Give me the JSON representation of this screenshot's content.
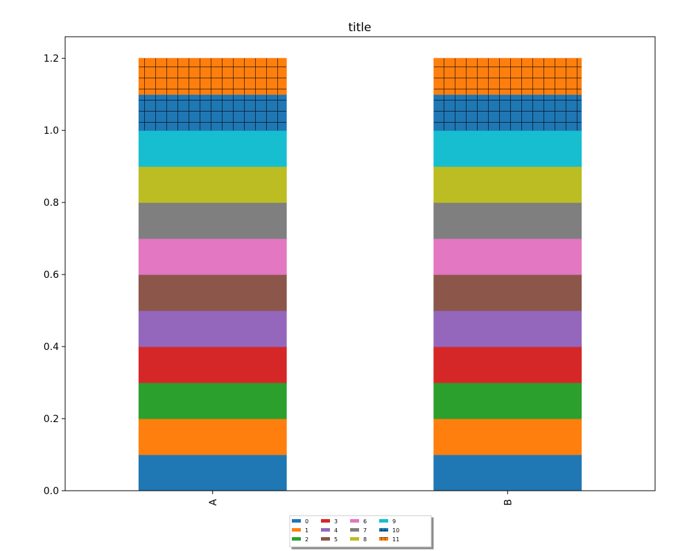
{
  "chart_data": {
    "type": "bar",
    "stacked": true,
    "title": "title",
    "xlabel": "",
    "ylabel": "",
    "categories": [
      "A",
      "B"
    ],
    "ylim": [
      0,
      1.26
    ],
    "yticks": [
      "0.0",
      "0.2",
      "0.4",
      "0.6",
      "0.8",
      "1.0",
      "1.2"
    ],
    "grid": false,
    "legend": {
      "placement": "bottom-center",
      "columns": 5
    },
    "series": [
      {
        "name": "0",
        "values": [
          0.1,
          0.1
        ],
        "color": "#1f77b4",
        "hatch": "none"
      },
      {
        "name": "1",
        "values": [
          0.1,
          0.1
        ],
        "color": "#ff7f0e",
        "hatch": "none"
      },
      {
        "name": "2",
        "values": [
          0.1,
          0.1
        ],
        "color": "#2ca02c",
        "hatch": "none"
      },
      {
        "name": "3",
        "values": [
          0.1,
          0.1
        ],
        "color": "#d62728",
        "hatch": "none"
      },
      {
        "name": "4",
        "values": [
          0.1,
          0.1
        ],
        "color": "#9467bd",
        "hatch": "none"
      },
      {
        "name": "5",
        "values": [
          0.1,
          0.1
        ],
        "color": "#8c564b",
        "hatch": "none"
      },
      {
        "name": "6",
        "values": [
          0.1,
          0.1
        ],
        "color": "#e377c2",
        "hatch": "none"
      },
      {
        "name": "7",
        "values": [
          0.1,
          0.1
        ],
        "color": "#7f7f7f",
        "hatch": "none"
      },
      {
        "name": "8",
        "values": [
          0.1,
          0.1
        ],
        "color": "#bcbd22",
        "hatch": "none"
      },
      {
        "name": "9",
        "values": [
          0.1,
          0.1
        ],
        "color": "#17becf",
        "hatch": "none"
      },
      {
        "name": "10",
        "values": [
          0.1,
          0.1
        ],
        "color": "#1f77b4",
        "hatch": "grid"
      },
      {
        "name": "11",
        "values": [
          0.1,
          0.1
        ],
        "color": "#ff7f0e",
        "hatch": "grid"
      }
    ]
  }
}
